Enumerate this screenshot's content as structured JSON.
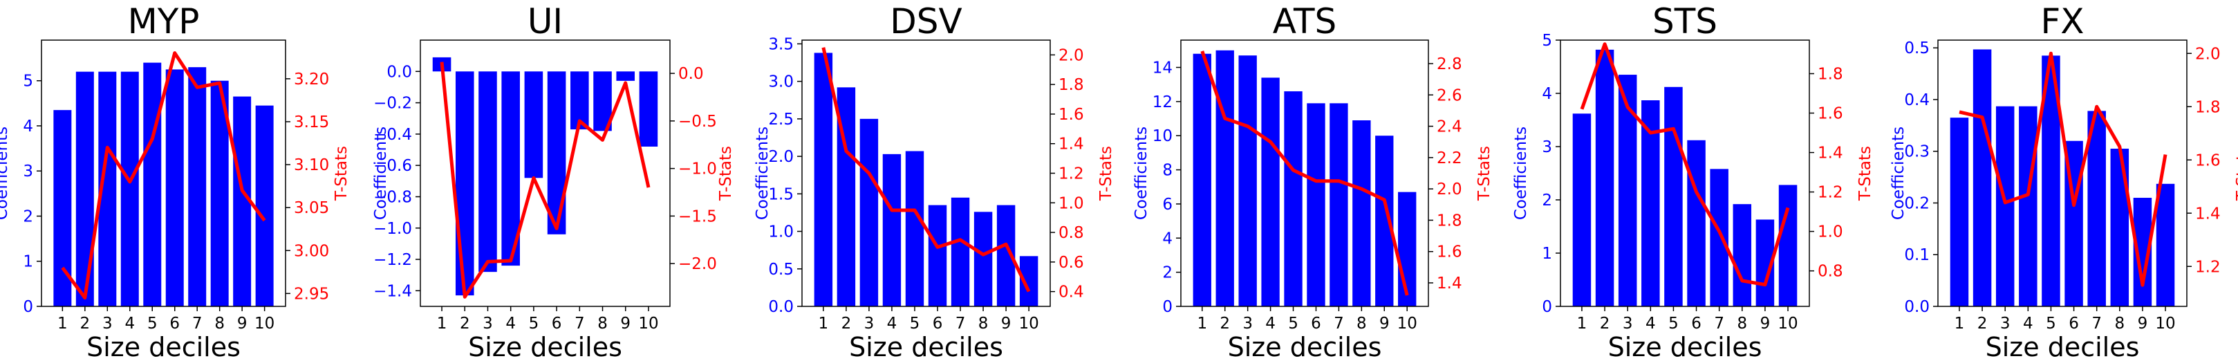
{
  "chart_data": [
    {
      "type": "bar",
      "title": "MYP",
      "xlabel": "Size deciles",
      "ylabel": "Coefficients",
      "y2label": "T-Stats",
      "categories": [
        "1",
        "2",
        "3",
        "4",
        "5",
        "6",
        "7",
        "8",
        "9",
        "10"
      ],
      "bar_values": [
        4.35,
        5.2,
        5.2,
        5.2,
        5.4,
        5.25,
        5.3,
        5.0,
        4.65,
        4.45
      ],
      "line_values": [
        2.98,
        2.945,
        3.12,
        3.08,
        3.13,
        3.23,
        3.19,
        3.195,
        3.07,
        3.035
      ],
      "ylim": [
        0,
        5.9
      ],
      "y2lim": [
        2.935,
        3.245
      ],
      "yticks": [
        0,
        1,
        2,
        3,
        4,
        5
      ],
      "y2ticks": [
        2.95,
        3.0,
        3.05,
        3.1,
        3.15,
        3.2
      ],
      "y2tick_labels": [
        "2.95",
        "3.00",
        "3.05",
        "3.10",
        "3.15",
        "3.20"
      ],
      "bar_color": "#0000ff",
      "line_color": "#ff0000"
    },
    {
      "type": "bar",
      "title": "UI",
      "xlabel": "Size deciles",
      "ylabel": "Coefficients",
      "y2label": "T-Stats",
      "categories": [
        "1",
        "2",
        "3",
        "4",
        "5",
        "6",
        "7",
        "8",
        "9",
        "10"
      ],
      "bar_values": [
        0.09,
        -1.43,
        -1.28,
        -1.24,
        -0.68,
        -1.04,
        -0.37,
        -0.38,
        -0.06,
        -0.48
      ],
      "line_values": [
        0.12,
        -2.35,
        -1.98,
        -1.97,
        -1.1,
        -1.63,
        -0.5,
        -0.7,
        -0.1,
        -1.2
      ],
      "ylim": [
        -1.5,
        0.2
      ],
      "y2lim": [
        -2.45,
        0.35
      ],
      "yticks": [
        -1.4,
        -1.2,
        -1.0,
        -0.8,
        -0.6,
        -0.4,
        -0.2,
        0.0
      ],
      "y2ticks": [
        -2.0,
        -1.5,
        -1.0,
        -0.5,
        0.0
      ],
      "bar_color": "#0000ff",
      "line_color": "#ff0000"
    },
    {
      "type": "bar",
      "title": "DSV",
      "xlabel": "Size deciles",
      "ylabel": "Coefficients",
      "y2label": "T-Stats",
      "categories": [
        "1",
        "2",
        "3",
        "4",
        "5",
        "6",
        "7",
        "8",
        "9",
        "10"
      ],
      "bar_values": [
        3.38,
        2.92,
        2.5,
        2.03,
        2.07,
        1.35,
        1.45,
        1.26,
        1.35,
        0.67
      ],
      "line_values": [
        2.05,
        1.35,
        1.2,
        0.95,
        0.95,
        0.7,
        0.75,
        0.65,
        0.72,
        0.4
      ],
      "ylim": [
        0,
        3.55
      ],
      "y2lim": [
        0.3,
        2.1
      ],
      "yticks": [
        0,
        0.5,
        1.0,
        1.5,
        2.0,
        2.5,
        3.0,
        3.5
      ],
      "y2ticks": [
        0.4,
        0.6,
        0.8,
        1.0,
        1.2,
        1.4,
        1.6,
        1.8,
        2.0
      ],
      "bar_color": "#0000ff",
      "line_color": "#ff0000"
    },
    {
      "type": "bar",
      "title": "ATS",
      "xlabel": "Size deciles",
      "ylabel": "Coefficients",
      "y2label": "T-Stats",
      "categories": [
        "1",
        "2",
        "3",
        "4",
        "5",
        "6",
        "7",
        "8",
        "9",
        "10"
      ],
      "bar_values": [
        14.8,
        15.0,
        14.7,
        13.4,
        12.6,
        11.9,
        11.9,
        10.9,
        10.0,
        6.7
      ],
      "line_values": [
        2.88,
        2.45,
        2.4,
        2.3,
        2.12,
        2.05,
        2.05,
        2.0,
        1.93,
        1.32
      ],
      "ylim": [
        0,
        15.6
      ],
      "y2lim": [
        1.25,
        2.95
      ],
      "yticks": [
        0,
        2,
        4,
        6,
        8,
        10,
        12,
        14
      ],
      "y2ticks": [
        1.4,
        1.6,
        1.8,
        2.0,
        2.2,
        2.4,
        2.6,
        2.8
      ],
      "bar_color": "#0000ff",
      "line_color": "#ff0000"
    },
    {
      "type": "bar",
      "title": "STS",
      "xlabel": "Size deciles",
      "ylabel": "Coefficients",
      "y2label": "T-Stats",
      "categories": [
        "1",
        "2",
        "3",
        "4",
        "5",
        "6",
        "7",
        "8",
        "9",
        "10"
      ],
      "bar_values": [
        3.62,
        4.82,
        4.35,
        3.87,
        4.12,
        3.12,
        2.58,
        1.92,
        1.63,
        2.28
      ],
      "line_values": [
        1.62,
        1.95,
        1.63,
        1.5,
        1.52,
        1.2,
        1.0,
        0.75,
        0.73,
        1.12
      ],
      "ylim": [
        0,
        5.0
      ],
      "y2lim": [
        0.62,
        1.97
      ],
      "yticks": [
        0,
        1,
        2,
        3,
        4,
        5
      ],
      "y2ticks": [
        0.8,
        1.0,
        1.2,
        1.4,
        1.6,
        1.8
      ],
      "bar_color": "#0000ff",
      "line_color": "#ff0000"
    },
    {
      "type": "bar",
      "title": "FX",
      "xlabel": "Size deciles",
      "ylabel": "Coefficients",
      "y2label": "T-Stats",
      "categories": [
        "1",
        "2",
        "3",
        "4",
        "5",
        "6",
        "7",
        "8",
        "9",
        "10"
      ],
      "bar_values": [
        0.365,
        0.497,
        0.387,
        0.387,
        0.485,
        0.32,
        0.378,
        0.305,
        0.21,
        0.237
      ],
      "line_values": [
        1.78,
        1.76,
        1.44,
        1.47,
        2.0,
        1.43,
        1.8,
        1.65,
        1.13,
        1.62
      ],
      "ylim": [
        0,
        0.515
      ],
      "y2lim": [
        1.05,
        2.05
      ],
      "yticks": [
        0,
        0.1,
        0.2,
        0.3,
        0.4,
        0.5
      ],
      "y2ticks": [
        1.2,
        1.4,
        1.6,
        1.8,
        2.0
      ],
      "bar_color": "#0000ff",
      "line_color": "#ff0000"
    }
  ]
}
